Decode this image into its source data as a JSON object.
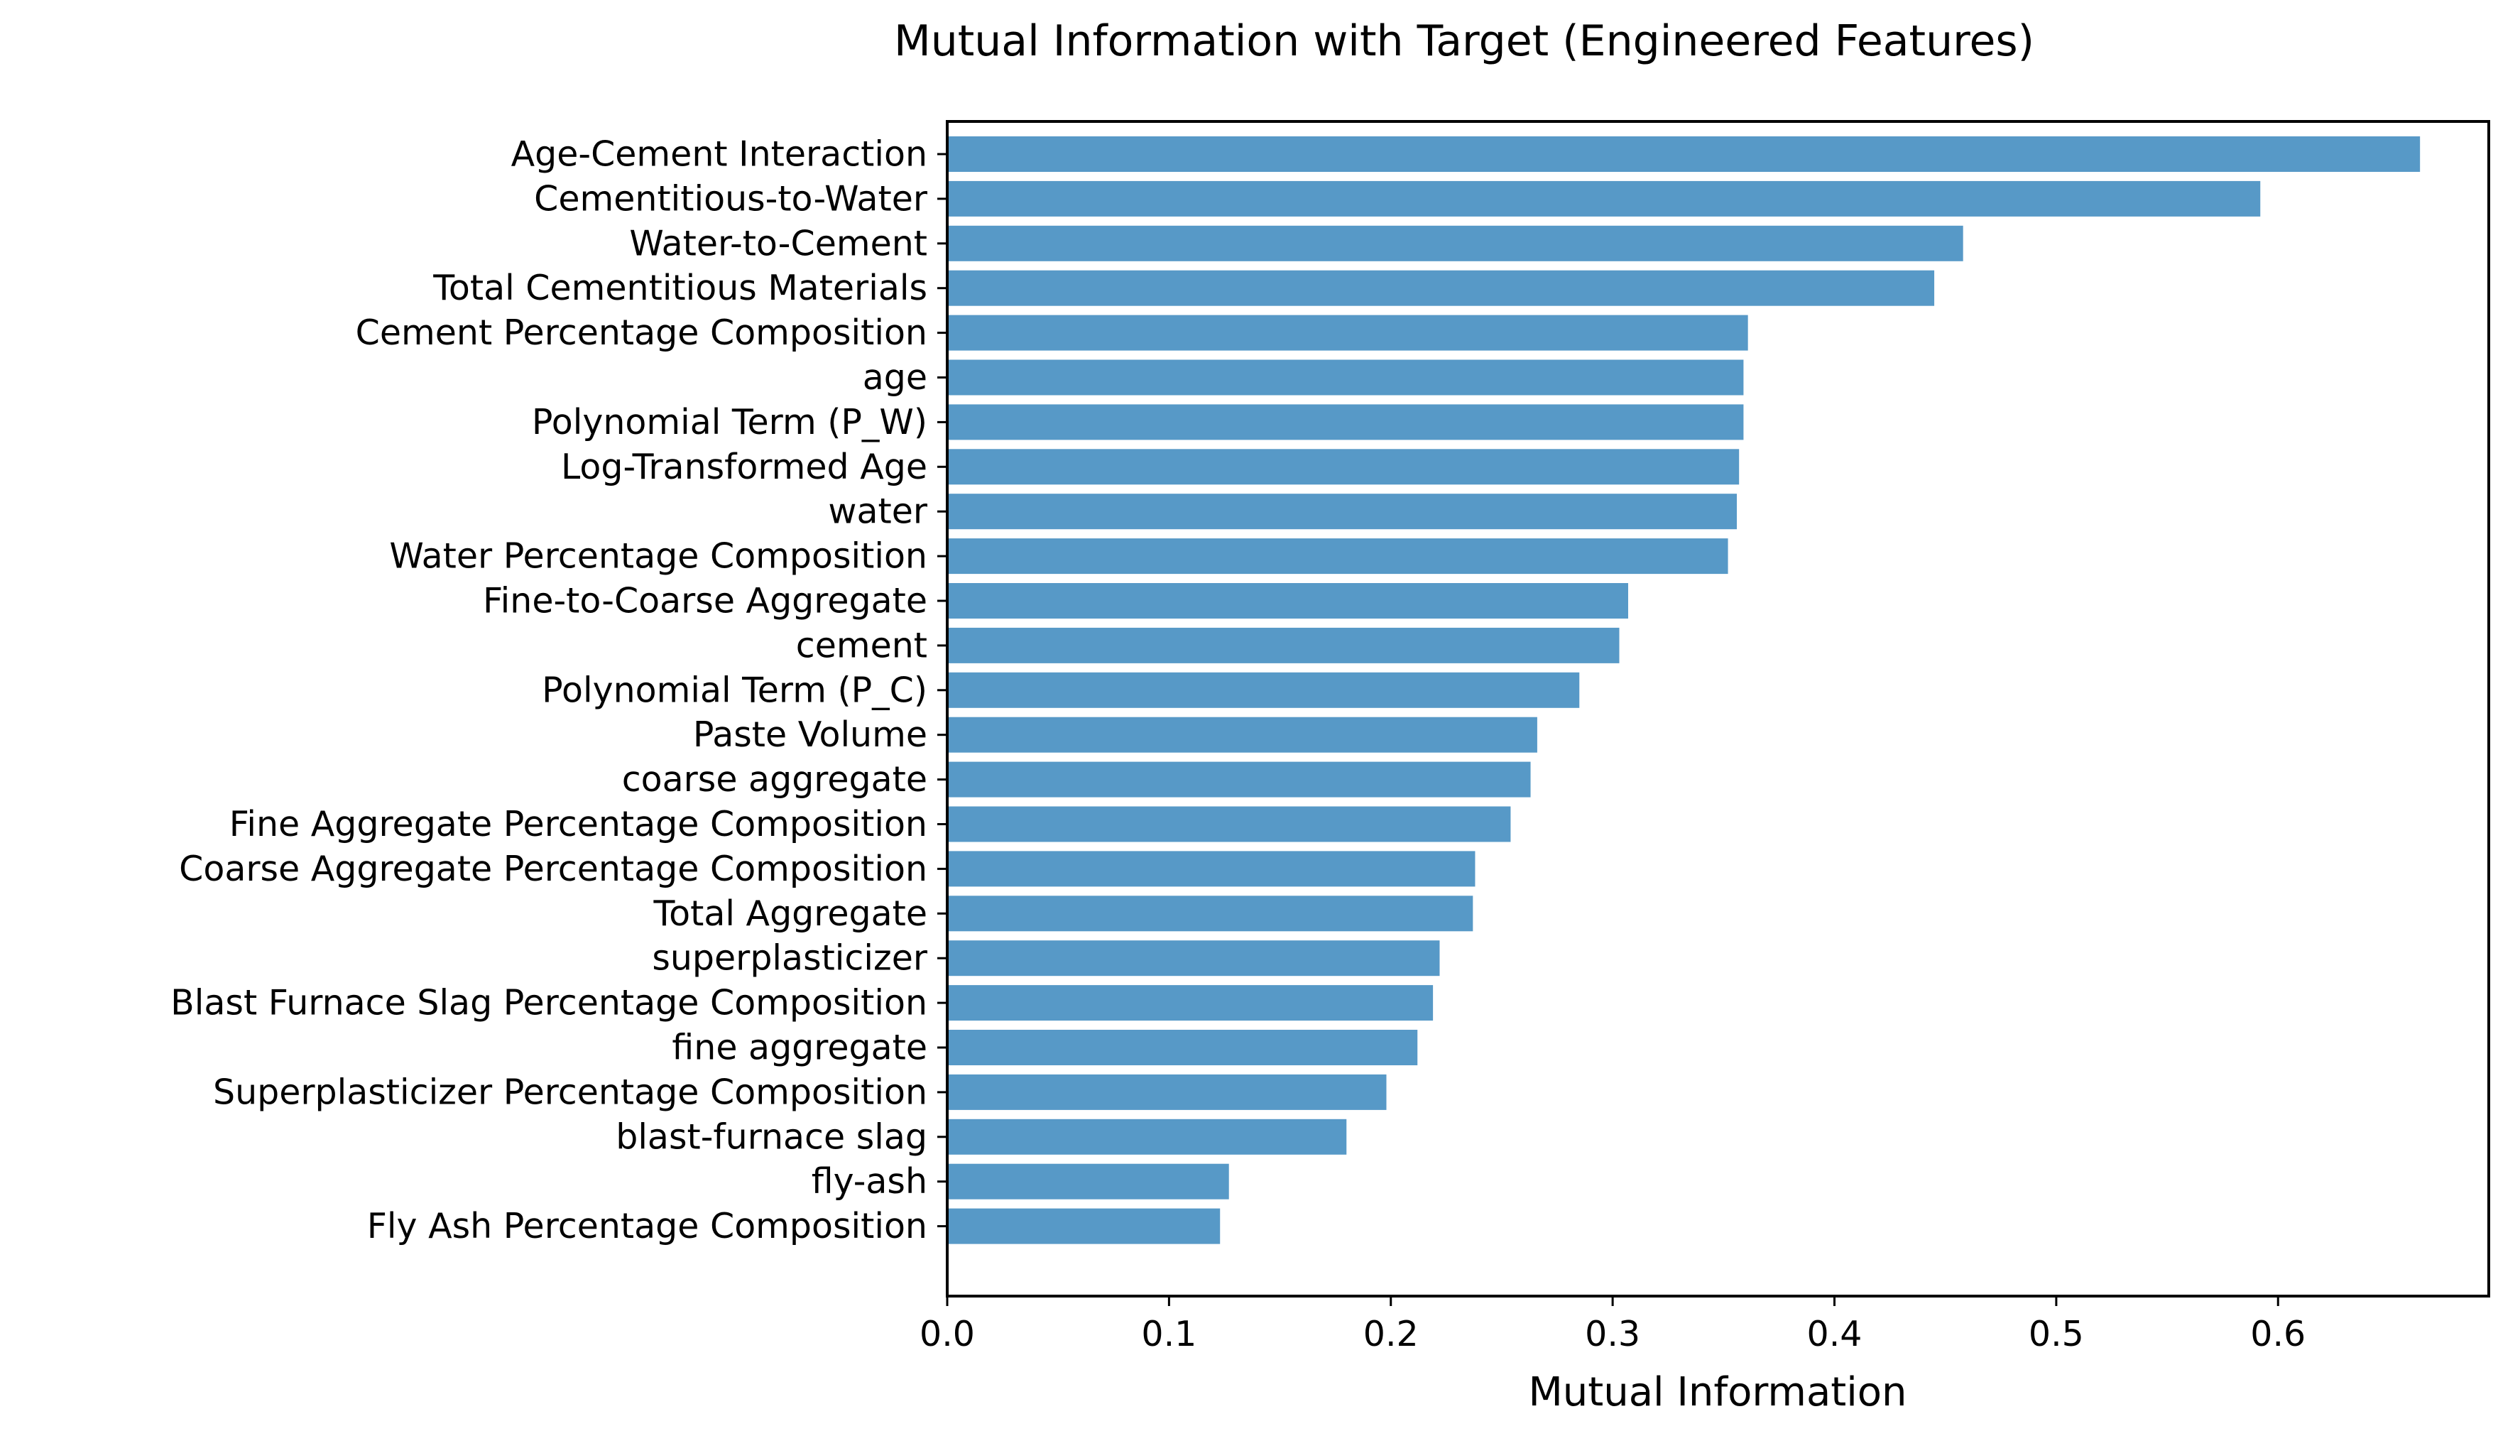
{
  "chart_data": {
    "type": "bar",
    "orientation": "horizontal",
    "title": "Mutual Information with Target (Engineered Features)",
    "xlabel": "Mutual Information",
    "ylabel": "",
    "xlim": [
      0,
      0.695
    ],
    "xticks": [
      0.0,
      0.1,
      0.2,
      0.3,
      0.4,
      0.5,
      0.6
    ],
    "xtick_labels": [
      "0.0",
      "0.1",
      "0.2",
      "0.3",
      "0.4",
      "0.5",
      "0.6"
    ],
    "grid": false,
    "legend": "none",
    "bar_color": "#5799c7",
    "categories": [
      "Age-Cement Interaction",
      "Cementitious-to-Water",
      "Water-to-Cement",
      "Total Cementitious Materials",
      "Cement Percentage Composition",
      "age",
      "Polynomial Term (P_W)",
      "Log-Transformed Age",
      "water",
      "Water Percentage Composition",
      "Fine-to-Coarse Aggregate",
      "cement",
      "Polynomial Term (P_C)",
      "Paste Volume",
      "coarse aggregate",
      "Fine Aggregate Percentage Composition",
      "Coarse Aggregate Percentage Composition",
      "Total Aggregate",
      "superplasticizer",
      "Blast Furnace Slag Percentage Composition",
      "fine aggregate",
      "Superplasticizer Percentage Composition",
      "blast-furnace slag",
      "fly-ash",
      "Fly Ash Percentage Composition"
    ],
    "values": [
      0.664,
      0.592,
      0.458,
      0.445,
      0.361,
      0.359,
      0.359,
      0.357,
      0.356,
      0.352,
      0.307,
      0.303,
      0.285,
      0.266,
      0.263,
      0.254,
      0.238,
      0.237,
      0.222,
      0.219,
      0.212,
      0.198,
      0.18,
      0.127,
      0.123
    ]
  }
}
